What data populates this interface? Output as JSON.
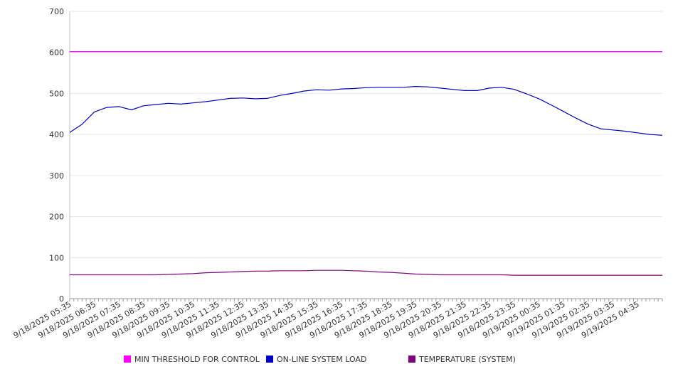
{
  "chart_data": {
    "type": "line",
    "grid": true,
    "legend_position": "bottom",
    "ylim": [
      0,
      700
    ],
    "y_ticks": [
      "0",
      "100",
      "200",
      "300",
      "400",
      "500",
      "600",
      "700"
    ],
    "x_tick_labels": [
      "9/18/2025 05:35",
      "9/18/2025 06:35",
      "9/18/2025 07:35",
      "9/18/2025 08:35",
      "9/18/2025 09:35",
      "9/18/2025 10:35",
      "9/18/2025 11:35",
      "9/18/2025 12:35",
      "9/18/2025 13:35",
      "9/18/2025 14:35",
      "9/18/2025 15:35",
      "9/18/2025 16:35",
      "9/18/2025 17:35",
      "9/18/2025 18:35",
      "9/18/2025 19:35",
      "9/18/2025 20:35",
      "9/18/2025 21:35",
      "9/18/2025 22:35",
      "9/18/2025 23:35",
      "9/19/2025 00:35",
      "9/19/2025 01:35",
      "9/19/2025 02:35",
      "9/19/2025 03:35",
      "9/19/2025 04:35"
    ],
    "x_hours": [
      0,
      0.5,
      1,
      1.5,
      2,
      2.5,
      3,
      3.5,
      4,
      4.5,
      5,
      5.5,
      6,
      6.5,
      7,
      7.5,
      8,
      8.5,
      9,
      9.5,
      10,
      10.5,
      11,
      11.5,
      12,
      12.5,
      13,
      13.5,
      14,
      14.5,
      15,
      15.5,
      16,
      16.5,
      17,
      17.5,
      18,
      18.5,
      19,
      19.5,
      20,
      20.5,
      21,
      21.5,
      22,
      22.5,
      23,
      23.5,
      24
    ],
    "series": [
      {
        "name": "MIN THRESHOLD FOR CONTROL",
        "color": "#ff00ff",
        "values": [
          602,
          602,
          602,
          602,
          602,
          602,
          602,
          602,
          602,
          602,
          602,
          602,
          602,
          602,
          602,
          602,
          602,
          602,
          602,
          602,
          602,
          602,
          602,
          602,
          602,
          602,
          602,
          602,
          602,
          602,
          602,
          602,
          602,
          602,
          602,
          602,
          602,
          602,
          602,
          602,
          602,
          602,
          602,
          602,
          602,
          602,
          602,
          602,
          602
        ]
      },
      {
        "name": "ON-LINE SYSTEM LOAD",
        "color": "#0000cc",
        "values": [
          405,
          425,
          455,
          466,
          468,
          460,
          470,
          473,
          476,
          474,
          477,
          480,
          484,
          488,
          489,
          487,
          488,
          495,
          500,
          506,
          509,
          508,
          511,
          512,
          514,
          515,
          515,
          515,
          517,
          516,
          513,
          510,
          507,
          507,
          513,
          515,
          510,
          499,
          487,
          472,
          456,
          440,
          425,
          414,
          411,
          408,
          404,
          400,
          398
        ]
      },
      {
        "name": "TEMPERATURE (SYSTEM)",
        "color": "#800080",
        "values": [
          58,
          58,
          58,
          58,
          58,
          58,
          58,
          58,
          59,
          60,
          61,
          63,
          64,
          65,
          66,
          67,
          67,
          68,
          68,
          68,
          69,
          69,
          69,
          68,
          67,
          65,
          64,
          62,
          60,
          59,
          58,
          58,
          58,
          58,
          58,
          58,
          57,
          57,
          57,
          57,
          57,
          57,
          57,
          57,
          57,
          57,
          57,
          57,
          57
        ]
      }
    ]
  }
}
